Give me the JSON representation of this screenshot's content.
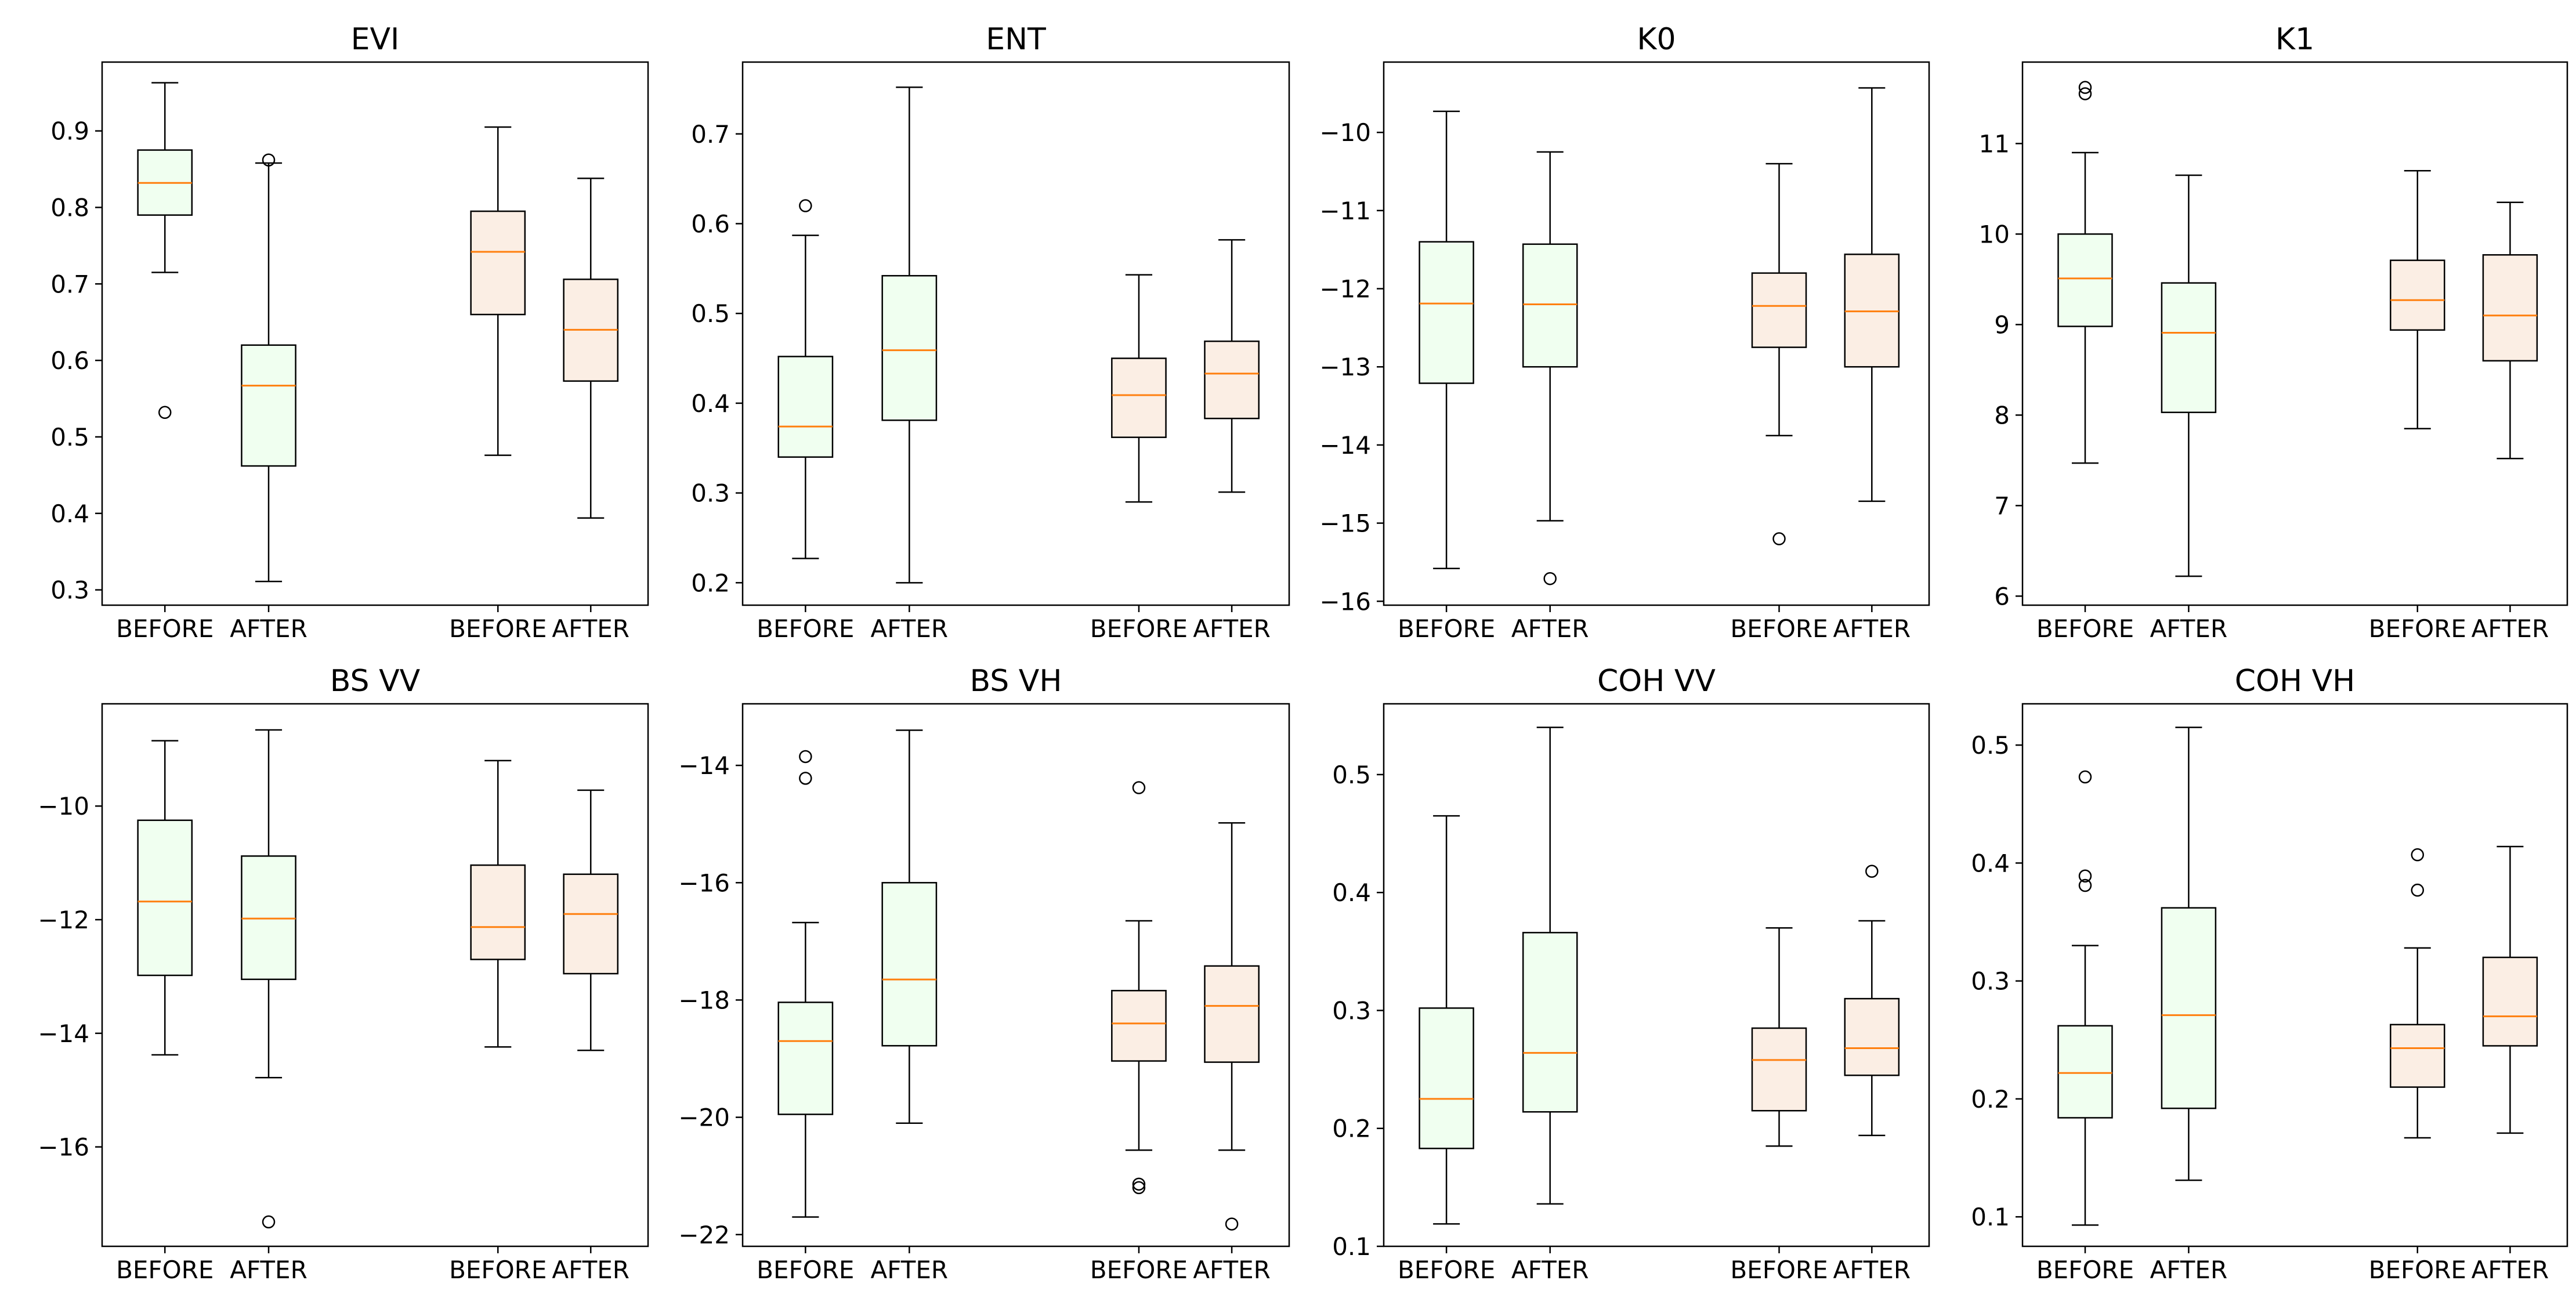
{
  "chart_data": [
    {
      "type": "box",
      "title": "EVI",
      "categories": [
        "BEFORE",
        "AFTER",
        "BEFORE",
        "AFTER"
      ],
      "ylim": [
        0.28,
        0.99
      ],
      "yticks": [
        0.3,
        0.4,
        0.5,
        0.6,
        0.7,
        0.8,
        0.9
      ],
      "ytick_labels": [
        "0.3",
        "0.4",
        "0.5",
        "0.6",
        "0.7",
        "0.8",
        "0.9"
      ],
      "boxes": [
        {
          "low": 0.715,
          "q1": 0.79,
          "median": 0.832,
          "q3": 0.875,
          "high": 0.963,
          "fliers": [
            0.532
          ]
        },
        {
          "low": 0.311,
          "q1": 0.462,
          "median": 0.567,
          "q3": 0.62,
          "high": 0.858,
          "fliers": [
            0.862
          ]
        },
        {
          "low": 0.476,
          "q1": 0.66,
          "median": 0.742,
          "q3": 0.795,
          "high": 0.905,
          "fliers": []
        },
        {
          "low": 0.394,
          "q1": 0.573,
          "median": 0.64,
          "q3": 0.706,
          "high": 0.838,
          "fliers": []
        }
      ]
    },
    {
      "type": "box",
      "title": "ENT",
      "categories": [
        "BEFORE",
        "AFTER",
        "BEFORE",
        "AFTER"
      ],
      "ylim": [
        0.175,
        0.78
      ],
      "yticks": [
        0.2,
        0.3,
        0.4,
        0.5,
        0.6,
        0.7
      ],
      "ytick_labels": [
        "0.2",
        "0.3",
        "0.4",
        "0.5",
        "0.6",
        "0.7"
      ],
      "boxes": [
        {
          "low": 0.227,
          "q1": 0.34,
          "median": 0.374,
          "q3": 0.452,
          "high": 0.587,
          "fliers": [
            0.62
          ]
        },
        {
          "low": 0.2,
          "q1": 0.381,
          "median": 0.459,
          "q3": 0.542,
          "high": 0.752,
          "fliers": []
        },
        {
          "low": 0.29,
          "q1": 0.362,
          "median": 0.409,
          "q3": 0.45,
          "high": 0.543,
          "fliers": []
        },
        {
          "low": 0.301,
          "q1": 0.383,
          "median": 0.433,
          "q3": 0.469,
          "high": 0.582,
          "fliers": []
        }
      ]
    },
    {
      "type": "box",
      "title": "K0",
      "categories": [
        "BEFORE",
        "AFTER",
        "BEFORE",
        "AFTER"
      ],
      "ylim": [
        -16.05,
        -9.1
      ],
      "yticks": [
        -16,
        -15,
        -14,
        -13,
        -12,
        -11,
        -10
      ],
      "ytick_labels": [
        "−16",
        "−15",
        "−14",
        "−13",
        "−12",
        "−11",
        "−10"
      ],
      "boxes": [
        {
          "low": -15.58,
          "q1": -13.21,
          "median": -12.19,
          "q3": -11.4,
          "high": -9.73,
          "fliers": []
        },
        {
          "low": -14.97,
          "q1": -13.0,
          "median": -12.2,
          "q3": -11.43,
          "high": -10.25,
          "fliers": [
            -15.71
          ]
        },
        {
          "low": -13.88,
          "q1": -12.75,
          "median": -12.22,
          "q3": -11.8,
          "high": -10.4,
          "fliers": [
            -15.2
          ]
        },
        {
          "low": -14.72,
          "q1": -13.0,
          "median": -12.29,
          "q3": -11.56,
          "high": -9.43,
          "fliers": []
        }
      ]
    },
    {
      "type": "box",
      "title": "K1",
      "categories": [
        "BEFORE",
        "AFTER",
        "BEFORE",
        "AFTER"
      ],
      "ylim": [
        5.9,
        11.9
      ],
      "yticks": [
        6,
        7,
        8,
        9,
        10,
        11
      ],
      "ytick_labels": [
        "6",
        "7",
        "8",
        "9",
        "10",
        "11"
      ],
      "boxes": [
        {
          "low": 7.47,
          "q1": 8.98,
          "median": 9.51,
          "q3": 10.0,
          "high": 10.9,
          "fliers": [
            11.55,
            11.62
          ]
        },
        {
          "low": 6.22,
          "q1": 8.03,
          "median": 8.91,
          "q3": 9.46,
          "high": 10.65,
          "fliers": []
        },
        {
          "low": 7.85,
          "q1": 8.94,
          "median": 9.27,
          "q3": 9.71,
          "high": 10.7,
          "fliers": []
        },
        {
          "low": 7.52,
          "q1": 8.6,
          "median": 9.1,
          "q3": 9.77,
          "high": 10.35,
          "fliers": []
        }
      ]
    },
    {
      "type": "box",
      "title": "BS VV",
      "categories": [
        "BEFORE",
        "AFTER",
        "BEFORE",
        "AFTER"
      ],
      "ylim": [
        -17.75,
        -8.2
      ],
      "yticks": [
        -16,
        -14,
        -12,
        -10
      ],
      "ytick_labels": [
        "−16",
        "−14",
        "−12",
        "−10"
      ],
      "boxes": [
        {
          "low": -14.38,
          "q1": -12.98,
          "median": -11.68,
          "q3": -10.25,
          "high": -8.85,
          "fliers": []
        },
        {
          "low": -14.78,
          "q1": -13.05,
          "median": -11.98,
          "q3": -10.88,
          "high": -8.66,
          "fliers": [
            -17.32
          ]
        },
        {
          "low": -14.24,
          "q1": -12.7,
          "median": -12.13,
          "q3": -11.04,
          "high": -9.2,
          "fliers": []
        },
        {
          "low": -14.3,
          "q1": -12.95,
          "median": -11.9,
          "q3": -11.2,
          "high": -9.72,
          "fliers": []
        }
      ]
    },
    {
      "type": "box",
      "title": "BS VH",
      "categories": [
        "BEFORE",
        "AFTER",
        "BEFORE",
        "AFTER"
      ],
      "ylim": [
        -22.2,
        -12.95
      ],
      "yticks": [
        -22,
        -20,
        -18,
        -16,
        -14
      ],
      "ytick_labels": [
        "−22",
        "−20",
        "−18",
        "−16",
        "−14"
      ],
      "boxes": [
        {
          "low": -21.7,
          "q1": -19.95,
          "median": -18.7,
          "q3": -18.04,
          "high": -16.68,
          "fliers": [
            -13.85,
            -14.22
          ]
        },
        {
          "low": -20.1,
          "q1": -18.78,
          "median": -17.65,
          "q3": -16.0,
          "high": -13.4,
          "fliers": []
        },
        {
          "low": -20.56,
          "q1": -19.04,
          "median": -18.4,
          "q3": -17.84,
          "high": -16.65,
          "fliers": [
            -14.38,
            -21.14,
            -21.2
          ]
        },
        {
          "low": -20.56,
          "q1": -19.06,
          "median": -18.1,
          "q3": -17.42,
          "high": -14.98,
          "fliers": [
            -21.82
          ]
        }
      ]
    },
    {
      "type": "box",
      "title": "COH VV",
      "categories": [
        "BEFORE",
        "AFTER",
        "BEFORE",
        "AFTER"
      ],
      "ylim": [
        0.1,
        0.56
      ],
      "yticks": [
        0.1,
        0.2,
        0.3,
        0.4,
        0.5
      ],
      "ytick_labels": [
        "0.1",
        "0.2",
        "0.3",
        "0.4",
        "0.5"
      ],
      "boxes": [
        {
          "low": 0.119,
          "q1": 0.183,
          "median": 0.225,
          "q3": 0.302,
          "high": 0.465,
          "fliers": []
        },
        {
          "low": 0.136,
          "q1": 0.214,
          "median": 0.264,
          "q3": 0.366,
          "high": 0.54,
          "fliers": []
        },
        {
          "low": 0.185,
          "q1": 0.215,
          "median": 0.258,
          "q3": 0.285,
          "high": 0.37,
          "fliers": []
        },
        {
          "low": 0.194,
          "q1": 0.245,
          "median": 0.268,
          "q3": 0.31,
          "high": 0.376,
          "fliers": [
            0.418
          ]
        }
      ]
    },
    {
      "type": "box",
      "title": "COH VH",
      "categories": [
        "BEFORE",
        "AFTER",
        "BEFORE",
        "AFTER"
      ],
      "ylim": [
        0.075,
        0.535
      ],
      "yticks": [
        0.1,
        0.2,
        0.3,
        0.4,
        0.5
      ],
      "ytick_labels": [
        "0.1",
        "0.2",
        "0.3",
        "0.4",
        "0.5"
      ],
      "boxes": [
        {
          "low": 0.093,
          "q1": 0.184,
          "median": 0.222,
          "q3": 0.262,
          "high": 0.33,
          "fliers": [
            0.473,
            0.389,
            0.381
          ]
        },
        {
          "low": 0.131,
          "q1": 0.192,
          "median": 0.271,
          "q3": 0.362,
          "high": 0.515,
          "fliers": []
        },
        {
          "low": 0.167,
          "q1": 0.21,
          "median": 0.243,
          "q3": 0.263,
          "high": 0.328,
          "fliers": [
            0.407,
            0.377
          ]
        },
        {
          "low": 0.171,
          "q1": 0.245,
          "median": 0.27,
          "q3": 0.32,
          "high": 0.414,
          "fliers": []
        }
      ]
    }
  ],
  "colors": {
    "box_fill_before_group": "#f0fff0",
    "box_fill_after_group": "#fbeee4",
    "median": "#ff7f0e",
    "line": "#000000"
  }
}
